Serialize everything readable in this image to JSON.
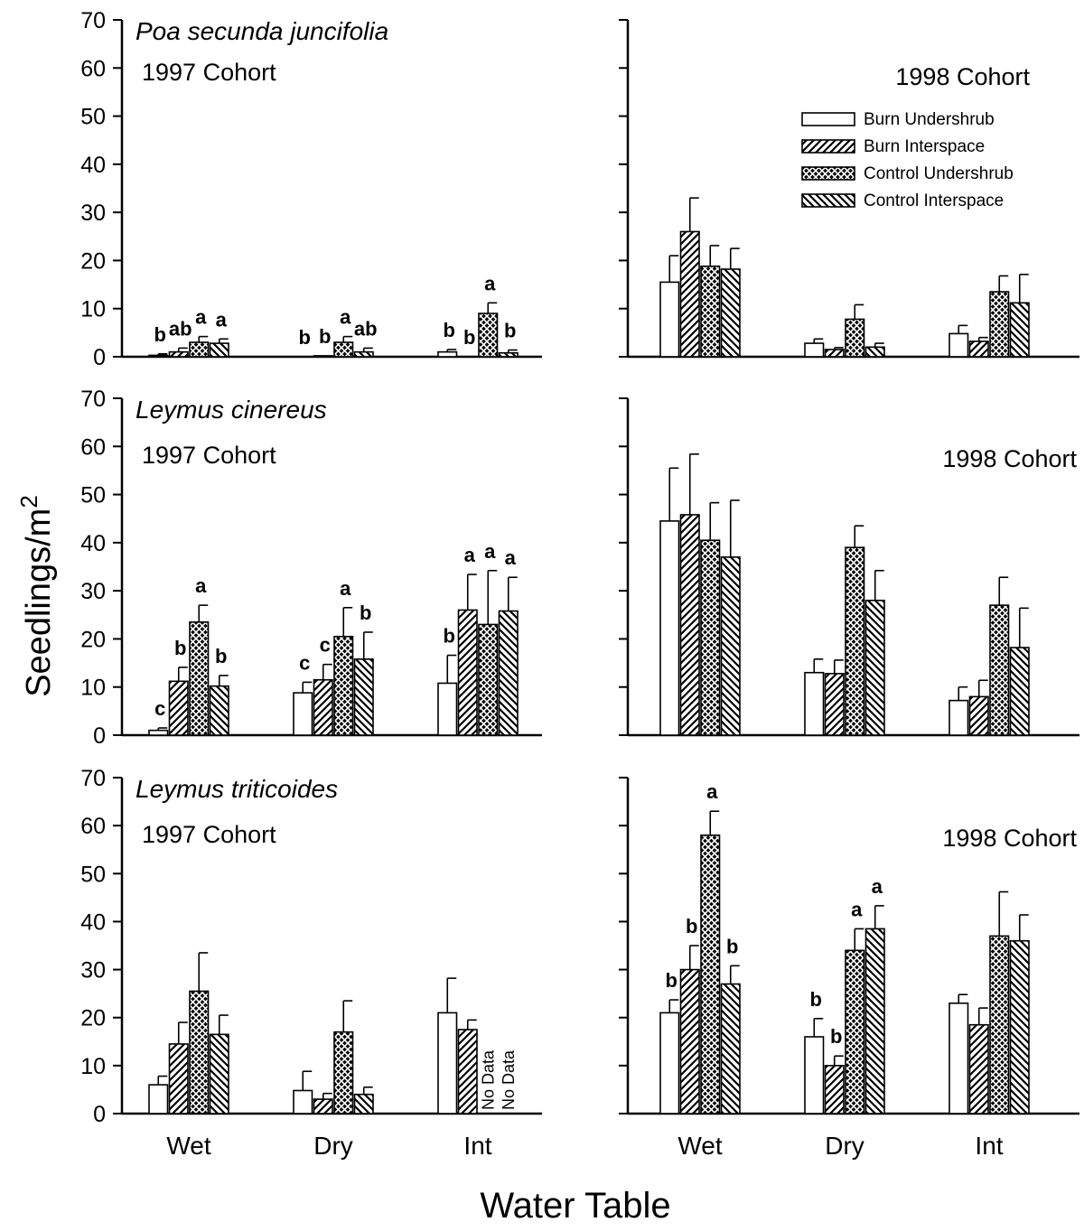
{
  "figure": {
    "ylabel": "Seedlings/m",
    "ylabel_superscript": "2",
    "xlabel": "Water Table"
  },
  "legend": {
    "position": "top-right of upper-right panel",
    "entries": [
      {
        "name": "Burn Undershrub",
        "pattern": "open"
      },
      {
        "name": "Burn Interspace",
        "pattern": "diag-right"
      },
      {
        "name": "Control Undershrub",
        "pattern": "crosshatch"
      },
      {
        "name": "Control Interspace",
        "pattern": "diag-left"
      }
    ]
  },
  "no_data_label": "No Data",
  "chart_data": [
    {
      "type": "bar",
      "row": 0,
      "col": 0,
      "species": "Poa secunda juncifolia",
      "cohort": "1997 Cohort",
      "categories": [
        "Wet",
        "Dry",
        "Int"
      ],
      "ylim": [
        0,
        70
      ],
      "yticks": [
        0,
        10,
        20,
        30,
        40,
        50,
        60,
        70
      ],
      "series": [
        {
          "name": "Burn Undershrub",
          "values": [
            0.3,
            0,
            1.0
          ],
          "errors": [
            0.3,
            0,
            0.5
          ],
          "letters": [
            "b",
            "b",
            "b"
          ]
        },
        {
          "name": "Burn Interspace",
          "values": [
            1.0,
            0.2,
            0
          ],
          "errors": [
            0.8,
            0,
            0
          ],
          "letters": [
            "ab",
            "b",
            "b"
          ]
        },
        {
          "name": "Control Undershrub",
          "values": [
            3.0,
            3.0,
            9.0
          ],
          "errors": [
            1.2,
            1.2,
            2.2
          ],
          "letters": [
            "a",
            "a",
            "a"
          ]
        },
        {
          "name": "Control Interspace",
          "values": [
            2.8,
            1.0,
            0.8
          ],
          "errors": [
            0.9,
            0.8,
            0.6
          ],
          "letters": [
            "a",
            "ab",
            "b"
          ]
        }
      ]
    },
    {
      "type": "bar",
      "row": 0,
      "col": 1,
      "cohort": "1998 Cohort",
      "categories": [
        "Wet",
        "Dry",
        "Int"
      ],
      "ylim": [
        0,
        70
      ],
      "series": [
        {
          "name": "Burn Undershrub",
          "values": [
            15.5,
            2.8,
            4.8
          ],
          "errors": [
            5.5,
            0.9,
            1.7
          ]
        },
        {
          "name": "Burn Interspace",
          "values": [
            26,
            1.5,
            3.2
          ],
          "errors": [
            7,
            0.4,
            0.8
          ]
        },
        {
          "name": "Control Undershrub",
          "values": [
            18.8,
            7.8,
            13.5
          ],
          "errors": [
            4.3,
            3.0,
            3.3
          ]
        },
        {
          "name": "Control Interspace",
          "values": [
            18.2,
            2.0,
            11.2
          ],
          "errors": [
            4.3,
            0.8,
            5.9
          ]
        }
      ]
    },
    {
      "type": "bar",
      "row": 1,
      "col": 0,
      "species": "Leymus cinereus",
      "cohort": "1997 Cohort",
      "categories": [
        "Wet",
        "Dry",
        "Int"
      ],
      "ylim": [
        0,
        70
      ],
      "yticks": [
        0,
        10,
        20,
        30,
        40,
        50,
        60,
        70
      ],
      "series": [
        {
          "name": "Burn Undershrub",
          "values": [
            1.0,
            8.8,
            10.8
          ],
          "errors": [
            0.5,
            2.2,
            5.8
          ],
          "letters": [
            "c",
            "c",
            "b"
          ]
        },
        {
          "name": "Burn Interspace",
          "values": [
            11.2,
            11.5,
            26
          ],
          "errors": [
            2.9,
            3.2,
            7.4
          ],
          "letters": [
            "b",
            "c",
            "a"
          ]
        },
        {
          "name": "Control Undershrub",
          "values": [
            23.5,
            20.5,
            23
          ],
          "errors": [
            3.5,
            6.0,
            11.2
          ],
          "letters": [
            "a",
            "a",
            "a"
          ]
        },
        {
          "name": "Control Interspace",
          "values": [
            10.2,
            15.8,
            25.8
          ],
          "errors": [
            2.2,
            5.6,
            7.0
          ],
          "letters": [
            "b",
            "b",
            "a"
          ]
        }
      ]
    },
    {
      "type": "bar",
      "row": 1,
      "col": 1,
      "cohort": "1998 Cohort",
      "categories": [
        "Wet",
        "Dry",
        "Int"
      ],
      "ylim": [
        0,
        70
      ],
      "series": [
        {
          "name": "Burn Undershrub",
          "values": [
            44.5,
            13,
            7.2
          ],
          "errors": [
            11,
            2.8,
            2.8
          ]
        },
        {
          "name": "Burn Interspace",
          "values": [
            45.8,
            12.8,
            8
          ],
          "errors": [
            12.6,
            2.8,
            3.4
          ]
        },
        {
          "name": "Control Undershrub",
          "values": [
            40.5,
            39,
            27
          ],
          "errors": [
            7.8,
            4.5,
            5.8
          ]
        },
        {
          "name": "Control Interspace",
          "values": [
            37,
            28,
            18.2
          ],
          "errors": [
            11.8,
            6.2,
            8.2
          ]
        }
      ]
    },
    {
      "type": "bar",
      "row": 2,
      "col": 0,
      "species": "Leymus triticoides",
      "cohort": "1997 Cohort",
      "categories": [
        "Wet",
        "Dry",
        "Int"
      ],
      "ylim": [
        0,
        70
      ],
      "yticks": [
        0,
        10,
        20,
        30,
        40,
        50,
        60,
        70
      ],
      "series": [
        {
          "name": "Burn Undershrub",
          "values": [
            6,
            4.8,
            21
          ],
          "errors": [
            1.8,
            4,
            7.2
          ]
        },
        {
          "name": "Burn Interspace",
          "values": [
            14.5,
            3,
            17.5
          ],
          "errors": [
            4.5,
            1.2,
            2
          ]
        },
        {
          "name": "Control Undershrub",
          "values": [
            25.5,
            17,
            null
          ],
          "errors": [
            8,
            6.5,
            0
          ]
        },
        {
          "name": "Control Interspace",
          "values": [
            16.5,
            4,
            null
          ],
          "errors": [
            4,
            1.5,
            0
          ]
        }
      ]
    },
    {
      "type": "bar",
      "row": 2,
      "col": 1,
      "cohort": "1998 Cohort",
      "categories": [
        "Wet",
        "Dry",
        "Int"
      ],
      "ylim": [
        0,
        70
      ],
      "series": [
        {
          "name": "Burn Undershrub",
          "values": [
            21,
            16,
            23
          ],
          "errors": [
            2.7,
            3.8,
            1.8
          ],
          "letters": [
            "b",
            "b",
            ""
          ]
        },
        {
          "name": "Burn Interspace",
          "values": [
            30,
            10,
            18.5
          ],
          "errors": [
            5,
            2,
            3.5
          ],
          "letters": [
            "b",
            "b",
            ""
          ]
        },
        {
          "name": "Control Undershrub",
          "values": [
            58,
            34,
            37
          ],
          "errors": [
            5,
            4.5,
            9.2
          ],
          "letters": [
            "a",
            "a",
            ""
          ]
        },
        {
          "name": "Control Interspace",
          "values": [
            27,
            38.5,
            36
          ],
          "errors": [
            3.8,
            4.8,
            5.4
          ],
          "letters": [
            "b",
            "a",
            ""
          ]
        }
      ]
    }
  ]
}
